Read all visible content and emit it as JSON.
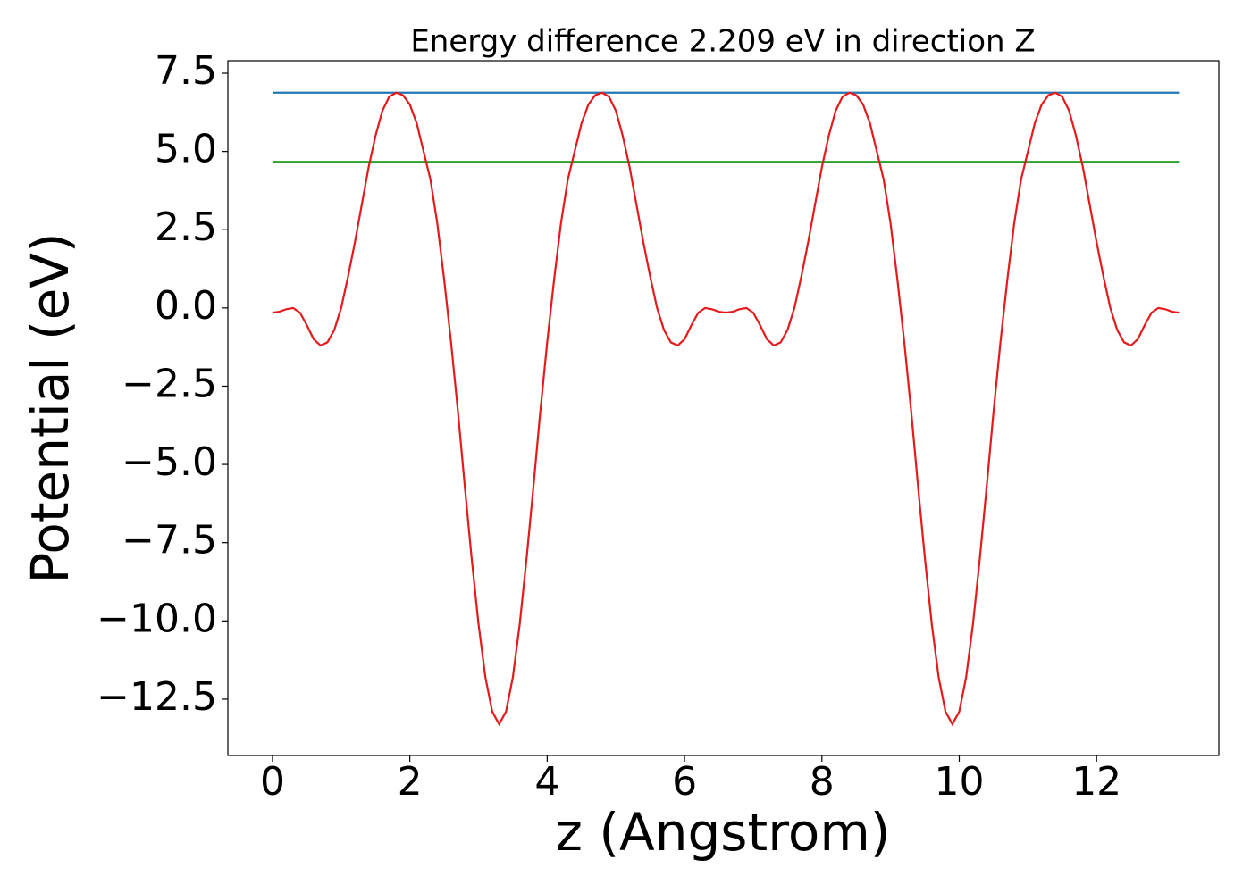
{
  "chart_data": {
    "type": "line",
    "title": "Energy difference 2.209 eV in direction Z",
    "xlabel": "z (Angstrom)",
    "ylabel": "Potential (eV)",
    "xlim": [
      -0.65,
      13.78
    ],
    "ylim": [
      -14.3,
      7.9
    ],
    "xticks": [
      0,
      2,
      4,
      6,
      8,
      10,
      12
    ],
    "yticks": [
      7.5,
      {
        "value": 5,
        "label": "5.0"
      },
      2.5,
      {
        "value": 0,
        "label": "0.0"
      },
      {
        "value": -2.5,
        "label": "−2.5"
      },
      {
        "value": -5,
        "label": "−5.0"
      },
      {
        "value": -7.5,
        "label": "−7.5"
      },
      {
        "value": -10,
        "label": "−10.0"
      },
      {
        "value": -12.5,
        "label": "−12.5"
      }
    ],
    "grid": false,
    "series": [
      {
        "color": "#1f77b4",
        "x": [
          0,
          13.2
        ],
        "values": [
          6.88,
          6.88
        ]
      },
      {
        "color": "#2ca02c",
        "x": [
          0,
          13.2
        ],
        "values": [
          4.67,
          4.67
        ]
      },
      {
        "color": "#e41a1c",
        "x": [
          0,
          0.1,
          0.2,
          0.3,
          0.4,
          0.5,
          0.6,
          0.7,
          0.8,
          0.9,
          1.0,
          1.1,
          1.2,
          1.3,
          1.4,
          1.5,
          1.6,
          1.7,
          1.8,
          1.9,
          2.0,
          2.1,
          2.2,
          2.3,
          2.4,
          2.5,
          2.6,
          2.7,
          2.8,
          2.9,
          3.0,
          3.1,
          3.2,
          3.3,
          3.4,
          3.5,
          3.6,
          3.7,
          3.8,
          3.9,
          4.0,
          4.1,
          4.2,
          4.3,
          4.4,
          4.5,
          4.6,
          4.7,
          4.8,
          4.9,
          5.0,
          5.1,
          5.2,
          5.3,
          5.4,
          5.5,
          5.6,
          5.7,
          5.8,
          5.9,
          6.0,
          6.1,
          6.2,
          6.3,
          6.4,
          6.5,
          6.6,
          6.7,
          6.8,
          6.9,
          7.0,
          7.1,
          7.2,
          7.3,
          7.4,
          7.5,
          7.6,
          7.7,
          7.8,
          7.9,
          8.0,
          8.1,
          8.2,
          8.3,
          8.4,
          8.5,
          8.6,
          8.7,
          8.8,
          8.9,
          9.0,
          9.1,
          9.2,
          9.3,
          9.4,
          9.5,
          9.6,
          9.7,
          9.8,
          9.9,
          10.0,
          10.1,
          10.2,
          10.3,
          10.4,
          10.5,
          10.6,
          10.7,
          10.8,
          10.9,
          11.0,
          11.1,
          11.2,
          11.3,
          11.4,
          11.5,
          11.6,
          11.7,
          11.8,
          11.9,
          12.0,
          12.1,
          12.2,
          12.3,
          12.4,
          12.5,
          12.6,
          12.7,
          12.8,
          12.9,
          13.0,
          13.1,
          13.2
        ],
        "values": [
          -0.15,
          -0.12,
          -0.04,
          0.0,
          -0.15,
          -0.55,
          -1.0,
          -1.2,
          -1.1,
          -0.7,
          0.0,
          1.0,
          2.1,
          3.3,
          4.5,
          5.5,
          6.3,
          6.75,
          6.88,
          6.8,
          6.5,
          5.9,
          5.0,
          4.1,
          2.7,
          0.9,
          -1.1,
          -3.3,
          -5.7,
          -8.0,
          -10.1,
          -11.8,
          -12.9,
          -13.3,
          -12.9,
          -11.8,
          -10.1,
          -8.0,
          -5.7,
          -3.3,
          -1.1,
          0.9,
          2.7,
          4.1,
          5.0,
          5.9,
          6.5,
          6.8,
          6.88,
          6.75,
          6.3,
          5.5,
          4.5,
          3.3,
          2.1,
          1.0,
          0.0,
          -0.7,
          -1.1,
          -1.2,
          -1.0,
          -0.55,
          -0.15,
          0.0,
          -0.04,
          -0.12,
          -0.15,
          -0.12,
          -0.04,
          0.0,
          -0.15,
          -0.55,
          -1.0,
          -1.2,
          -1.1,
          -0.7,
          0.0,
          1.0,
          2.1,
          3.3,
          4.5,
          5.5,
          6.3,
          6.75,
          6.88,
          6.8,
          6.5,
          5.9,
          5.0,
          4.1,
          2.7,
          0.9,
          -1.1,
          -3.3,
          -5.7,
          -8.0,
          -10.1,
          -11.8,
          -12.9,
          -13.3,
          -12.9,
          -11.8,
          -10.1,
          -8.0,
          -5.7,
          -3.3,
          -1.1,
          0.9,
          2.7,
          4.1,
          5.0,
          5.9,
          6.5,
          6.8,
          6.88,
          6.75,
          6.3,
          5.5,
          4.5,
          3.3,
          2.1,
          1.0,
          0.0,
          -0.7,
          -1.1,
          -1.2,
          -1.0,
          -0.55,
          -0.15,
          0.0,
          -0.04,
          -0.12,
          -0.15
        ]
      }
    ]
  }
}
